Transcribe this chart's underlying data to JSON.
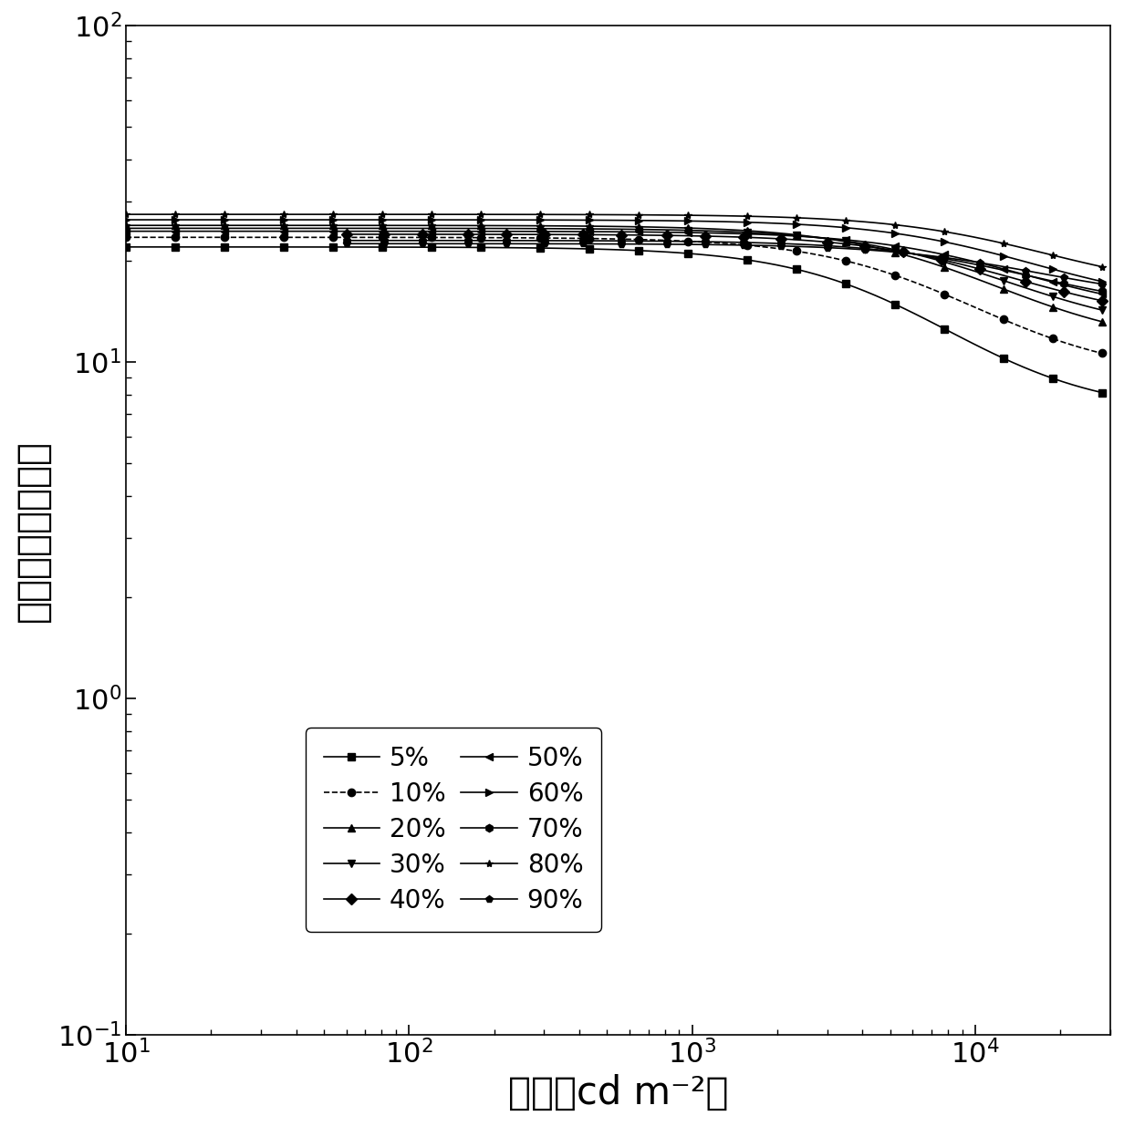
{
  "xlabel": "亮度（cd m⁻²）",
  "ylabel": "外量子效率（％）",
  "xlim": [
    10,
    30000
  ],
  "ylim": [
    0.1,
    100
  ],
  "series": [
    {
      "label": "5%",
      "marker": "s",
      "x_start": 10,
      "y_flat": 22.0,
      "x_roll": 8000,
      "y_end": 7.0,
      "linestyle": "-",
      "k": 3.5
    },
    {
      "label": "10%",
      "marker": "o",
      "x_start": 10,
      "y_flat": 23.5,
      "x_roll": 10000,
      "y_end": 9.0,
      "linestyle": "--",
      "k": 3.5
    },
    {
      "label": "20%",
      "marker": "^",
      "x_start": 10,
      "y_flat": 25.5,
      "x_roll": 12000,
      "y_end": 11.0,
      "linestyle": "-",
      "k": 3.5
    },
    {
      "label": "30%",
      "marker": "v",
      "x_start": 10,
      "y_flat": 25.0,
      "x_roll": 13000,
      "y_end": 12.0,
      "linestyle": "-",
      "k": 3.5
    },
    {
      "label": "40%",
      "marker": "D",
      "x_start": 60,
      "y_flat": 24.0,
      "x_roll": 14000,
      "y_end": 13.0,
      "linestyle": "-",
      "k": 3.5
    },
    {
      "label": "50%",
      "marker": "<",
      "x_start": 10,
      "y_flat": 24.5,
      "x_roll": 15000,
      "y_end": 13.5,
      "linestyle": "-",
      "k": 3.5
    },
    {
      "label": "60%",
      "marker": ">",
      "x_start": 10,
      "y_flat": 26.5,
      "x_roll": 16000,
      "y_end": 14.5,
      "linestyle": "-",
      "k": 3.5
    },
    {
      "label": "70%",
      "marker": "h",
      "x_start": 60,
      "y_flat": 23.0,
      "x_roll": 16000,
      "y_end": 14.0,
      "linestyle": "-",
      "k": 3.5
    },
    {
      "label": "80%",
      "marker": "*",
      "x_start": 10,
      "y_flat": 27.5,
      "x_roll": 18000,
      "y_end": 16.0,
      "linestyle": "-",
      "k": 3.5
    },
    {
      "label": "90%",
      "marker": "p",
      "x_start": 60,
      "y_flat": 22.5,
      "x_roll": 17000,
      "y_end": 15.0,
      "linestyle": "-",
      "k": 3.5
    }
  ],
  "line_color": "#000000",
  "marker_size": 6,
  "linewidth": 1.2,
  "background_color": "#ffffff",
  "tick_fontsize": 22,
  "label_fontsize": 30,
  "n_points": 100,
  "n_markers": 20
}
